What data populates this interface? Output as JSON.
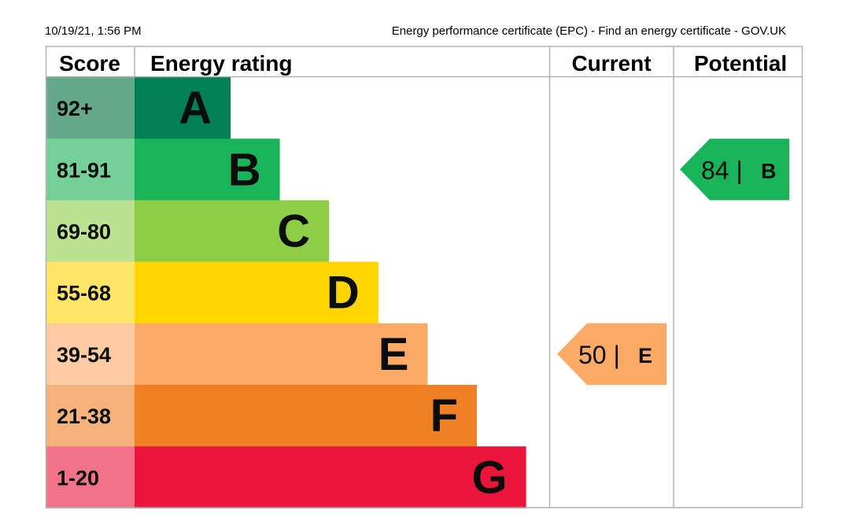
{
  "print_header": {
    "timestamp": "10/19/21, 1:56 PM",
    "page_title": "Energy performance certificate (EPC) - Find an energy certificate - GOV.UK"
  },
  "table_headers": {
    "score": "Score",
    "rating": "Energy rating",
    "current": "Current",
    "potential": "Potential"
  },
  "chart_data": {
    "type": "bar",
    "bands": [
      {
        "letter": "A",
        "score_range": "92+",
        "score_min": 92,
        "score_max": 100,
        "bar_color": "#008054",
        "score_color": "#66a98a"
      },
      {
        "letter": "B",
        "score_range": "81-91",
        "score_min": 81,
        "score_max": 91,
        "bar_color": "#19b459",
        "score_color": "#74d097"
      },
      {
        "letter": "C",
        "score_range": "69-80",
        "score_min": 69,
        "score_max": 80,
        "bar_color": "#8dce46",
        "score_color": "#bbe290"
      },
      {
        "letter": "D",
        "score_range": "55-68",
        "score_min": 55,
        "score_max": 68,
        "bar_color": "#ffd500",
        "score_color": "#ffe666"
      },
      {
        "letter": "E",
        "score_range": "39-54",
        "score_min": 39,
        "score_max": 54,
        "bar_color": "#fcaa65",
        "score_color": "#fdcca3"
      },
      {
        "letter": "F",
        "score_range": "21-38",
        "score_min": 21,
        "score_max": 38,
        "bar_color": "#ef8023",
        "score_color": "#f5b37b"
      },
      {
        "letter": "G",
        "score_range": "1-20",
        "score_min": 1,
        "score_max": 20,
        "bar_color": "#e9153b",
        "score_color": "#f27389"
      }
    ],
    "current": {
      "score": 50,
      "letter": "E",
      "label": "50 |",
      "color": "#fcaa65"
    },
    "potential": {
      "score": 84,
      "letter": "B",
      "label": "84 |",
      "color": "#19b459"
    }
  }
}
